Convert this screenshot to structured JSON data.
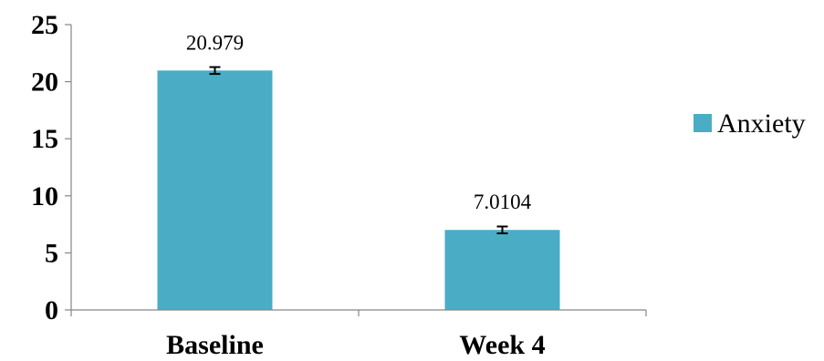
{
  "chart_data": {
    "type": "bar",
    "categories": [
      "Baseline",
      "Week 4"
    ],
    "series": [
      {
        "name": "Anxiety",
        "values": [
          20.979,
          7.0104
        ],
        "data_labels": [
          "20.979",
          "7.0104"
        ],
        "error": [
          0.3,
          0.3
        ],
        "color": "#4BACC6"
      }
    ],
    "ylim": [
      0,
      25
    ],
    "yticks": [
      0,
      5,
      10,
      15,
      20,
      25
    ],
    "ytick_labels": [
      "0",
      "5",
      "10",
      "15",
      "20",
      "25"
    ],
    "grid": false,
    "legend_position": "right"
  }
}
